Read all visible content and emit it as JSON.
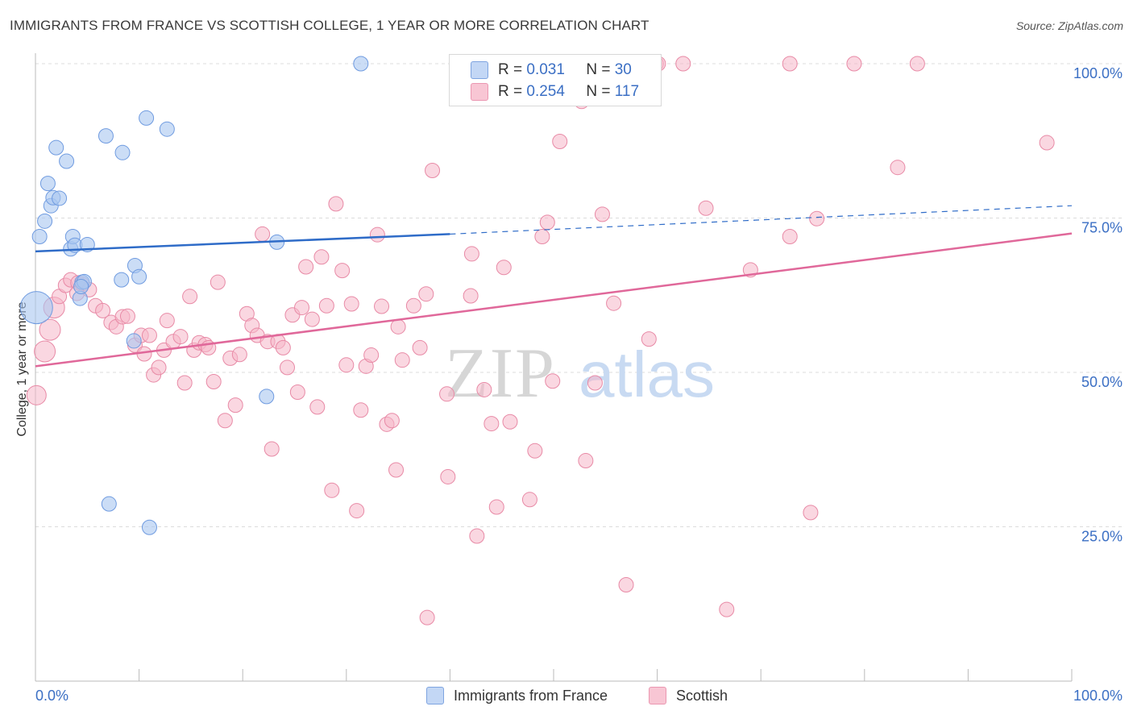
{
  "title": "IMMIGRANTS FROM FRANCE VS SCOTTISH COLLEGE, 1 YEAR OR MORE CORRELATION CHART",
  "source": "Source: ZipAtlas.com",
  "watermark": {
    "zip": "ZIP",
    "atlas": "atlas"
  },
  "colors": {
    "blue_fill": "#a9c6f0",
    "blue_stroke": "#6f9be0",
    "blue_line": "#2f6cc8",
    "pink_fill": "#f5b7c9",
    "pink_stroke": "#e88aa6",
    "pink_line": "#e0689a",
    "tick_label": "#3b6fc4",
    "grid": "#dcdcdc"
  },
  "legend": {
    "rows": [
      {
        "r_label": "R =",
        "r_value": "0.031",
        "n_label": "N =",
        "n_value": "30"
      },
      {
        "r_label": "R =",
        "r_value": "0.254",
        "n_label": "N =",
        "n_value": "117"
      }
    ]
  },
  "chart_data": {
    "type": "scatter",
    "title": "IMMIGRANTS FROM FRANCE VS SCOTTISH COLLEGE, 1 YEAR OR MORE CORRELATION CHART",
    "xlabel": "",
    "ylabel": "College, 1 year or more",
    "xlim": [
      0,
      100
    ],
    "ylim": [
      0,
      100
    ],
    "x_tick_labels": [
      "0.0%",
      "100.0%"
    ],
    "y_tick_labels": [
      "25.0%",
      "50.0%",
      "75.0%",
      "100.0%"
    ],
    "y_ticks": [
      25,
      50,
      75,
      100
    ],
    "grid": true,
    "legend_position": "bottom",
    "series": [
      {
        "name": "Immigrants from France",
        "color": "#a9c6f0",
        "trend": {
          "x": [
            0,
            40
          ],
          "y": [
            69.6,
            72.4
          ],
          "dashed_to": [
            100,
            77.0
          ]
        },
        "points": [
          [
            0.1,
            60.5,
            20
          ],
          [
            0.4,
            72.0,
            9
          ],
          [
            0.9,
            74.5,
            9
          ],
          [
            1.2,
            80.6,
            9
          ],
          [
            1.5,
            77.0,
            9
          ],
          [
            1.7,
            78.3,
            9
          ],
          [
            2.0,
            86.4,
            9
          ],
          [
            2.3,
            78.2,
            9
          ],
          [
            3.0,
            84.2,
            9
          ],
          [
            3.4,
            70.0,
            9
          ],
          [
            3.6,
            72.0,
            9
          ],
          [
            3.8,
            70.6,
            9
          ],
          [
            4.5,
            64.6,
            9
          ],
          [
            4.3,
            62.0,
            9
          ],
          [
            5.0,
            70.7,
            9
          ],
          [
            4.7,
            64.7,
            9
          ],
          [
            6.8,
            88.3,
            9
          ],
          [
            8.4,
            85.6,
            9
          ],
          [
            8.3,
            65.0,
            9
          ],
          [
            9.5,
            55.1,
            9
          ],
          [
            9.6,
            67.3,
            9
          ],
          [
            10.0,
            65.5,
            9
          ],
          [
            10.7,
            91.2,
            9
          ],
          [
            12.7,
            89.4,
            9
          ],
          [
            7.1,
            28.7,
            9
          ],
          [
            11.0,
            24.9,
            9
          ],
          [
            23.3,
            71.1,
            9
          ],
          [
            22.3,
            46.1,
            9
          ],
          [
            31.4,
            100.0,
            9
          ],
          [
            4.4,
            63.9,
            9
          ]
        ]
      },
      {
        "name": "Scottish",
        "color": "#f5b7c9",
        "trend": {
          "x": [
            0,
            100
          ],
          "y": [
            51.0,
            72.5
          ]
        },
        "points": [
          [
            0.1,
            46.3,
            12
          ],
          [
            0.9,
            53.4,
            13
          ],
          [
            1.4,
            56.9,
            13
          ],
          [
            1.8,
            60.5,
            13
          ],
          [
            2.3,
            62.3,
            9
          ],
          [
            2.9,
            64.1,
            9
          ],
          [
            3.4,
            65.0,
            9
          ],
          [
            4.1,
            64.5,
            9
          ],
          [
            4.5,
            64.3,
            9
          ],
          [
            5.2,
            63.4,
            9
          ],
          [
            5.8,
            60.8,
            9
          ],
          [
            6.5,
            60.0,
            9
          ],
          [
            7.3,
            58.1,
            9
          ],
          [
            7.8,
            57.4,
            9
          ],
          [
            8.4,
            59.0,
            9
          ],
          [
            8.9,
            59.1,
            9
          ],
          [
            9.6,
            54.4,
            9
          ],
          [
            10.2,
            56.0,
            9
          ],
          [
            10.5,
            53.0,
            9
          ],
          [
            11.0,
            56.0,
            9
          ],
          [
            11.4,
            49.6,
            9
          ],
          [
            11.9,
            50.8,
            9
          ],
          [
            12.4,
            53.6,
            9
          ],
          [
            12.7,
            58.4,
            9
          ],
          [
            13.3,
            55.0,
            9
          ],
          [
            14.0,
            55.8,
            9
          ],
          [
            14.4,
            48.3,
            9
          ],
          [
            14.9,
            62.3,
            9
          ],
          [
            15.3,
            53.6,
            9
          ],
          [
            15.8,
            54.8,
            9
          ],
          [
            16.4,
            54.5,
            9
          ],
          [
            16.7,
            54.0,
            9
          ],
          [
            17.2,
            48.5,
            9
          ],
          [
            17.6,
            64.6,
            9
          ],
          [
            18.3,
            42.2,
            9
          ],
          [
            18.8,
            52.3,
            9
          ],
          [
            19.3,
            44.7,
            9
          ],
          [
            19.7,
            52.9,
            9
          ],
          [
            20.4,
            59.5,
            9
          ],
          [
            20.9,
            57.6,
            9
          ],
          [
            21.4,
            56.0,
            9
          ],
          [
            21.9,
            72.4,
            9
          ],
          [
            22.4,
            55.0,
            9
          ],
          [
            22.8,
            37.6,
            9
          ],
          [
            23.4,
            55.0,
            9
          ],
          [
            23.9,
            54.0,
            9
          ],
          [
            24.3,
            50.8,
            9
          ],
          [
            24.8,
            59.3,
            9
          ],
          [
            25.3,
            46.8,
            9
          ],
          [
            25.7,
            60.5,
            9
          ],
          [
            26.1,
            67.1,
            9
          ],
          [
            26.7,
            58.6,
            9
          ],
          [
            27.2,
            44.4,
            9
          ],
          [
            27.6,
            68.7,
            9
          ],
          [
            28.1,
            60.8,
            9
          ],
          [
            28.6,
            30.9,
            9
          ],
          [
            29.0,
            77.3,
            9
          ],
          [
            29.6,
            66.5,
            9
          ],
          [
            30.0,
            51.2,
            9
          ],
          [
            30.5,
            61.1,
            9
          ],
          [
            31.0,
            27.6,
            9
          ],
          [
            31.4,
            43.9,
            9
          ],
          [
            31.9,
            51.0,
            9
          ],
          [
            32.4,
            52.8,
            9
          ],
          [
            33.0,
            72.3,
            9
          ],
          [
            33.4,
            60.7,
            9
          ],
          [
            33.9,
            41.6,
            9
          ],
          [
            34.4,
            42.2,
            9
          ],
          [
            34.8,
            34.2,
            9
          ],
          [
            35.0,
            57.4,
            9
          ],
          [
            35.4,
            52.0,
            9
          ],
          [
            36.5,
            60.8,
            9
          ],
          [
            37.1,
            54.0,
            9
          ],
          [
            37.7,
            62.7,
            9
          ],
          [
            38.3,
            82.7,
            9
          ],
          [
            39.7,
            46.5,
            9
          ],
          [
            39.8,
            33.1,
            9
          ],
          [
            40.7,
            94.4,
            9
          ],
          [
            42.0,
            62.4,
            9
          ],
          [
            42.1,
            69.2,
            9
          ],
          [
            42.6,
            23.5,
            9
          ],
          [
            43.3,
            47.2,
            9
          ],
          [
            44.0,
            41.7,
            9
          ],
          [
            44.5,
            28.2,
            9
          ],
          [
            45.2,
            67.0,
            9
          ],
          [
            45.8,
            42.0,
            9
          ],
          [
            47.7,
            29.4,
            9
          ],
          [
            48.2,
            37.3,
            9
          ],
          [
            48.9,
            72.0,
            9
          ],
          [
            49.4,
            74.3,
            9
          ],
          [
            49.9,
            48.6,
            9
          ],
          [
            50.6,
            87.4,
            9
          ],
          [
            51.6,
            97.6,
            9
          ],
          [
            53.1,
            35.7,
            9
          ],
          [
            52.7,
            93.9,
            9
          ],
          [
            54.0,
            48.3,
            9
          ],
          [
            54.7,
            75.6,
            9
          ],
          [
            55.8,
            61.2,
            9
          ],
          [
            55.7,
            98.7,
            9
          ],
          [
            57.0,
            15.6,
            9
          ],
          [
            59.2,
            55.4,
            9
          ],
          [
            59.9,
            100.0,
            9
          ],
          [
            60.1,
            100.0,
            9
          ],
          [
            62.5,
            100.0,
            9
          ],
          [
            64.7,
            76.6,
            9
          ],
          [
            66.7,
            11.6,
            9
          ],
          [
            69.0,
            66.6,
            9
          ],
          [
            72.8,
            100.0,
            9
          ],
          [
            72.8,
            72.0,
            9
          ],
          [
            75.4,
            74.9,
            9
          ],
          [
            74.8,
            27.3,
            9
          ],
          [
            79.0,
            100.0,
            9
          ],
          [
            83.2,
            83.2,
            9
          ],
          [
            85.1,
            100.0,
            9
          ],
          [
            97.6,
            87.2,
            9
          ],
          [
            37.8,
            10.3,
            9
          ],
          [
            4.0,
            62.8,
            9
          ]
        ]
      }
    ]
  },
  "bottom_legend": {
    "items": [
      "Immigrants from France",
      "Scottish"
    ]
  }
}
